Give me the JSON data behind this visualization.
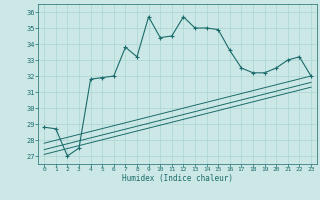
{
  "xlabel": "Humidex (Indice chaleur)",
  "bg_color": "#cce8e6",
  "grid_color": "#b0d8d5",
  "line_color": "#1a6b6b",
  "xlim": [
    -0.5,
    23.5
  ],
  "ylim": [
    26.5,
    36.5
  ],
  "xticks": [
    0,
    1,
    2,
    3,
    4,
    5,
    6,
    7,
    8,
    9,
    10,
    11,
    12,
    13,
    14,
    15,
    16,
    17,
    18,
    19,
    20,
    21,
    22,
    23
  ],
  "yticks": [
    27,
    28,
    29,
    30,
    31,
    32,
    33,
    34,
    35,
    36
  ],
  "humidex_x": [
    0,
    1,
    2,
    3,
    4,
    5,
    6,
    7,
    8,
    9,
    10,
    11,
    12,
    13,
    14,
    15,
    16,
    17,
    18,
    19,
    20,
    21,
    22,
    23
  ],
  "humidex_y": [
    28.8,
    28.7,
    27.0,
    27.5,
    31.8,
    31.9,
    32.0,
    33.8,
    33.2,
    35.7,
    34.4,
    34.5,
    35.7,
    35.0,
    35.0,
    34.9,
    33.6,
    32.5,
    32.2,
    32.2,
    32.5,
    33.0,
    33.2,
    32.0
  ],
  "line1_x": [
    0,
    23
  ],
  "line1_y": [
    27.8,
    32.0
  ],
  "line2_x": [
    0,
    23
  ],
  "line2_y": [
    27.4,
    31.6
  ],
  "line3_x": [
    0,
    23
  ],
  "line3_y": [
    27.1,
    31.3
  ]
}
